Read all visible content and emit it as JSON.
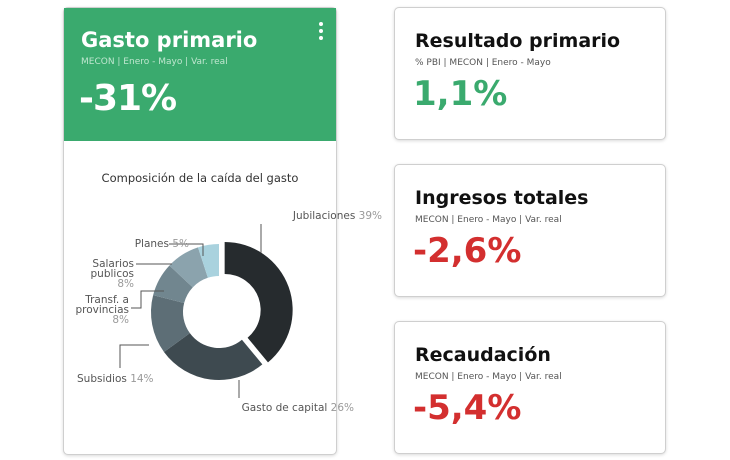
{
  "main_card": {
    "title": "Gasto primario",
    "subtitle": "MECON | Enero - Mayo | Var. real",
    "value": "-31%",
    "header_color": "#3aaa6e"
  },
  "chart_data": {
    "type": "pie",
    "variant": "donut",
    "title": "Composición de la caída del gasto",
    "slices": [
      {
        "label": "Jubilaciones",
        "value": 39,
        "pct": "39%",
        "color": "#262b2e"
      },
      {
        "label": "Gasto de capital",
        "value": 26,
        "pct": "26%",
        "color": "#3e4a50"
      },
      {
        "label": "Subsidios",
        "value": 14,
        "pct": "14%",
        "color": "#5d6e76"
      },
      {
        "label": "Transf. a provincias",
        "value": 8,
        "pct": "8%",
        "color": "#71868f"
      },
      {
        "label": "Salarios publicos",
        "value": 8,
        "pct": "8%",
        "color": "#8ba3ad"
      },
      {
        "label": "Planes",
        "value": 5,
        "pct": "5%",
        "color": "#a9d2de"
      }
    ]
  },
  "cards": [
    {
      "title": "Resultado primario",
      "subtitle": "% PBI | MECON | Enero - Mayo",
      "value": "1,1%",
      "color": "#3aaa6e"
    },
    {
      "title": "Ingresos totales",
      "subtitle": "MECON | Enero - Mayo | Var. real",
      "value": "-2,6%",
      "color": "#d32f2f"
    },
    {
      "title": "Recaudación",
      "subtitle": "MECON | Enero - Mayo | Var. real",
      "value": "-5,4%",
      "color": "#d32f2f"
    }
  ]
}
